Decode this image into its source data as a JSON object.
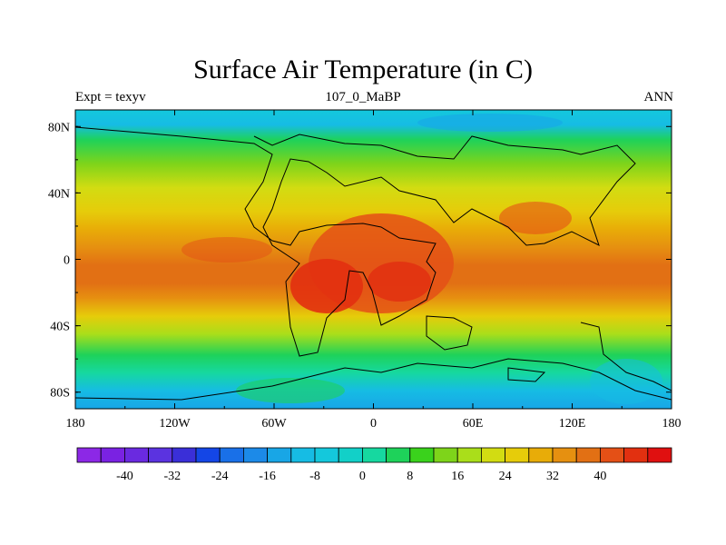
{
  "title": "Surface Air Temperature (in C)",
  "left_label": "Expt = texyv",
  "center_label": "107_0_MaBP",
  "right_label": "ANN",
  "x_ticks": [
    "180",
    "120W",
    "60W",
    "0",
    "60E",
    "120E",
    "180"
  ],
  "y_ticks": [
    "80N",
    "40N",
    "0",
    "40S",
    "80S"
  ],
  "colorbar_labels": [
    "-40",
    "-32",
    "-24",
    "-16",
    "-8",
    "0",
    "8",
    "16",
    "24",
    "32",
    "40"
  ],
  "colorbar_colors": [
    "#8c28e6",
    "#7a22e2",
    "#6a2ae0",
    "#5b33e0",
    "#3a2fd8",
    "#1446e6",
    "#1970e8",
    "#1c8ae8",
    "#18a6e6",
    "#16bce4",
    "#14c8dc",
    "#12d0c8",
    "#16d8a0",
    "#1ed25a",
    "#3ad21c",
    "#7ed41a",
    "#aade1a",
    "#d2dc12",
    "#e6cc0a",
    "#e8ac08",
    "#e69010",
    "#e27014",
    "#e45016",
    "#e23010",
    "#e01010"
  ],
  "chart_data": {
    "type": "heatmap",
    "title": "Surface Air Temperature (in C)",
    "xlim": [
      -180,
      180
    ],
    "ylim": [
      -90,
      90
    ],
    "zonal_mean_temperature": {
      "lat": [
        90,
        80,
        70,
        60,
        50,
        40,
        30,
        20,
        10,
        0,
        -10,
        -20,
        -30,
        -40,
        -50,
        -60,
        -70,
        -80,
        -90
      ],
      "value": [
        0,
        2,
        6,
        12,
        18,
        22,
        26,
        30,
        33,
        34,
        33,
        30,
        26,
        22,
        16,
        10,
        6,
        3,
        0
      ]
    }
  }
}
